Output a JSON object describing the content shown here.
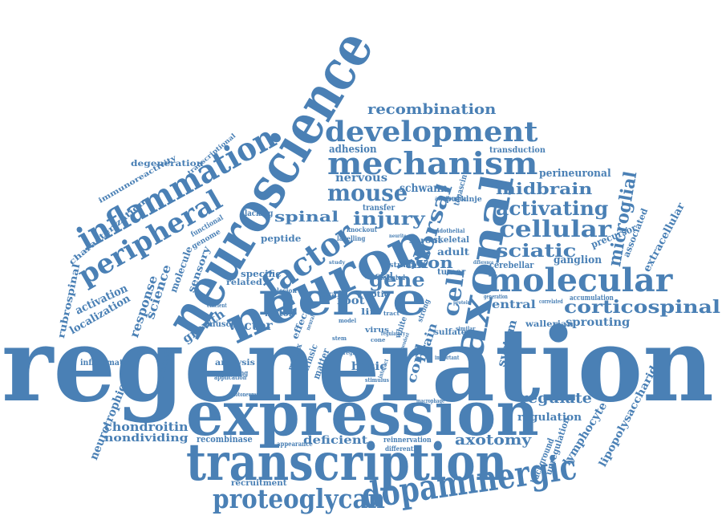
{
  "colors": {
    "word": "#4a80b5",
    "background": "#ffffff"
  },
  "words": [
    "regeneration",
    "expression",
    "transcription",
    "neuroscience",
    "neuron",
    "nerve",
    "axonal",
    "molecular",
    "development",
    "mechanism",
    "dopaminergic",
    "proteoglycan",
    "inflammation",
    "peripheral",
    "factor",
    "recombination",
    "mouse",
    "cellular",
    "activating",
    "corticospinal",
    "injury",
    "spinal",
    "midbrain",
    "sciatic",
    "dorsal",
    "cell",
    "gene",
    "axon",
    "microglial",
    "regulate",
    "axotomy",
    "chondroitin",
    "regulation",
    "lymphocyte",
    "lipopolysaccharide",
    "deficient",
    "nondividing",
    "recombinase",
    "recruitment",
    "neurotrophic",
    "inflammatory",
    "necrosis",
    "analysis",
    "basic",
    "cord",
    "brain",
    "growth",
    "vector",
    "sprouting",
    "wallerian",
    "central",
    "system",
    "ganglion",
    "precursor",
    "extracellular",
    "associated",
    "perineuronal",
    "transduction",
    "adhesion",
    "nervous",
    "schwann",
    "purkinje",
    "tenascin",
    "transfer",
    "skeletal",
    "adult",
    "tumor",
    "cerebellar",
    "accumulation",
    "response",
    "science",
    "sensory",
    "molecule",
    "activation",
    "localization",
    "rubrospinal",
    "characterization",
    "immunoreactivity",
    "degeneration",
    "transcriptional",
    "peptide",
    "specific",
    "related",
    "root",
    "facial",
    "optic",
    "graft",
    "motor",
    "muscle",
    "sprout",
    "stump",
    "mediated",
    "effect",
    "background",
    "upregulation",
    "reinnervation",
    "differential",
    "appearance",
    "genome",
    "functional",
    "lacking",
    "labelling",
    "knockout",
    "anatomical",
    "endothelial",
    "sulfate",
    "strong",
    "life",
    "virus",
    "white",
    "matter",
    "intrinsic",
    "matrix",
    "expressing",
    "application",
    "stimulus",
    "correlated",
    "generation",
    "important",
    "difference",
    "similar",
    "macrophage",
    "tract",
    "regulatory",
    "interact",
    "motoneuron",
    "lesion",
    "efficient",
    "model",
    "stem",
    "study",
    "neurite",
    "region",
    "cone",
    "neural",
    "dependent",
    "protein"
  ]
}
